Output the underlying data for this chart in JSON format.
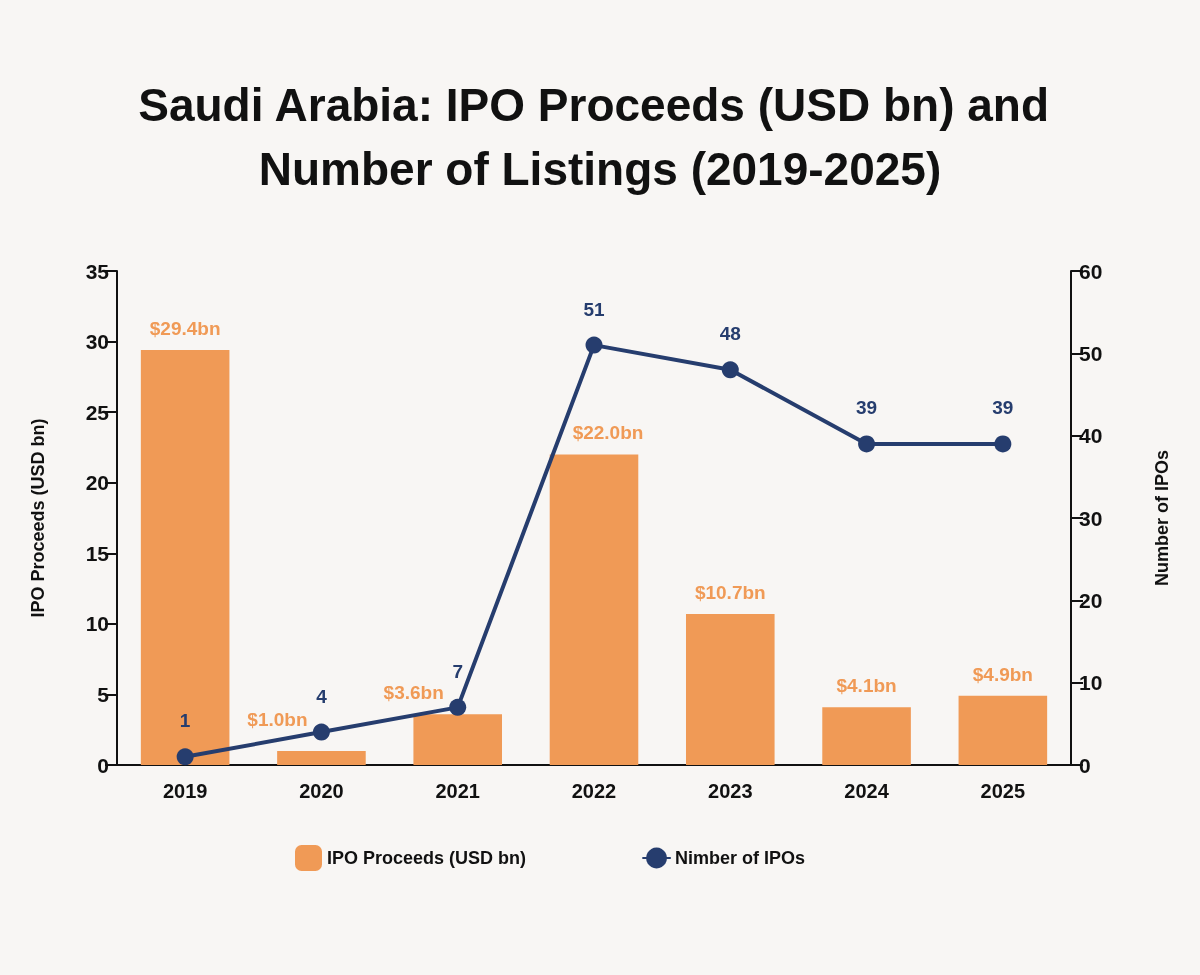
{
  "chart_data": {
    "type": "bar",
    "title": "Saudi Arabia: IPO Proceeds (USD bn) and Number of Listings (2019-2025)",
    "categories": [
      "2019",
      "2020",
      "2021",
      "2022",
      "2023",
      "2024",
      "2025"
    ],
    "series": [
      {
        "name": "IPO Proceeds (USD bn)",
        "color": "#f09a56",
        "values": [
          29.4,
          1.0,
          3.6,
          22.0,
          10.7,
          4.1,
          4.9
        ],
        "value_labels": [
          "$29.4bn",
          "$1.0bn",
          "$3.6bn",
          "$22.0bn",
          "$10.7bn",
          "$4.1bn",
          "$4.9bn"
        ]
      },
      {
        "name": "Nimber of IPOs",
        "type": "line",
        "axis": "y2",
        "color": "#263d6e",
        "values": [
          1,
          4,
          7,
          51,
          48,
          39,
          39
        ],
        "value_labels": [
          "1",
          "4",
          "7",
          "51",
          "48",
          "39",
          "39"
        ]
      }
    ],
    "ylabel": "IPO Proceeds (USD bn)",
    "y2label": "Number of IPOs",
    "ylim": [
      0,
      35
    ],
    "yticks": [
      0,
      5,
      10,
      15,
      20,
      25,
      30,
      35
    ],
    "y2lim": [
      0,
      60
    ],
    "y2ticks": [
      0,
      10,
      20,
      30,
      40,
      50,
      60
    ],
    "grid": false,
    "legend": "bottom",
    "marker": "circle",
    "line_style": "solid"
  }
}
